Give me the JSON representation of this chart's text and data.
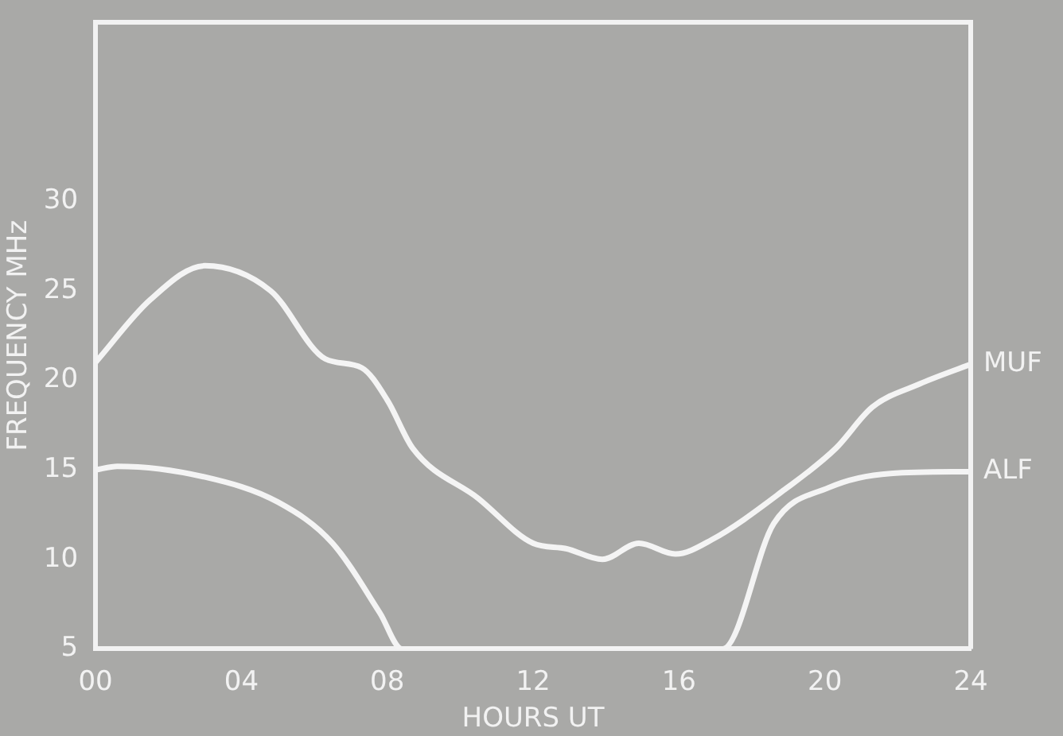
{
  "chart_data": {
    "type": "line",
    "xlabel": "HOURS UT",
    "ylabel": "FREQUENCY MHz",
    "xlim": [
      0,
      24
    ],
    "ylim": [
      5,
      40
    ],
    "xticks": [
      {
        "value": 0,
        "label": "00"
      },
      {
        "value": 4,
        "label": "04"
      },
      {
        "value": 8,
        "label": "08"
      },
      {
        "value": 12,
        "label": "12"
      },
      {
        "value": 16,
        "label": "16"
      },
      {
        "value": 20,
        "label": "20"
      },
      {
        "value": 24,
        "label": "24"
      }
    ],
    "yticks": [
      5,
      10,
      15,
      20,
      25,
      30
    ],
    "grid": false,
    "legend": false,
    "marker": "none",
    "line_style": "solid",
    "series": [
      {
        "name": "MUF",
        "color": "#f4f4f4",
        "x": [
          0,
          1.5,
          3,
          4.8,
          6.3,
          7.3,
          8,
          8.7,
          10.5,
          12,
          12.9,
          13.9,
          14.9,
          15.9,
          16.9,
          18.9,
          20.3,
          21.3,
          22.6,
          24
        ],
        "values": [
          21,
          24.5,
          26.4,
          25,
          21.2,
          20.7,
          18.9,
          16.2,
          13.4,
          10.9,
          10.6,
          10,
          10.9,
          10.3,
          11.1,
          13.9,
          16.2,
          18.5,
          19.8,
          20.9
        ]
      },
      {
        "name": "ALF",
        "color": "#f4f4f4",
        "x": [
          0,
          0.6,
          3,
          5,
          6.5,
          7.8,
          8.4,
          17.2,
          18.6,
          20.1,
          21.8,
          24
        ],
        "values": [
          15,
          15.2,
          14.6,
          13.2,
          10.9,
          7,
          5,
          5,
          12,
          14,
          14.8,
          14.9
        ]
      }
    ]
  }
}
